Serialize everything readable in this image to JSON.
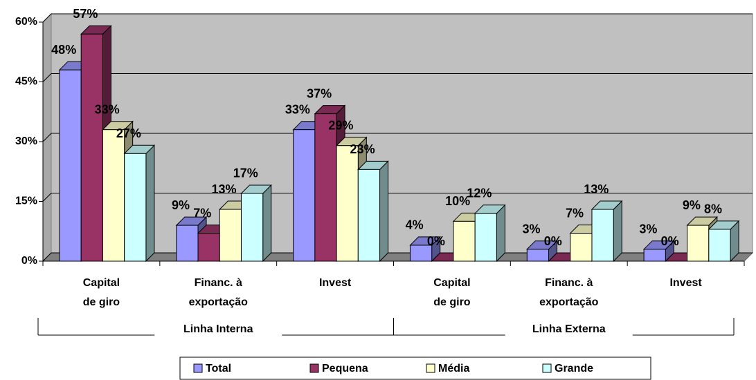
{
  "chart_data": {
    "type": "bar3d",
    "categories": [
      [
        "Capital",
        "de giro"
      ],
      [
        "Financ. à",
        "exportação"
      ],
      [
        "Invest"
      ],
      [
        "Capital",
        "de giro"
      ],
      [
        "Financ. à",
        "exportação"
      ],
      [
        "Invest"
      ]
    ],
    "groups": [
      "Linha Interna",
      "Linha Externa"
    ],
    "series": [
      {
        "name": "Total",
        "color": "#9999ff",
        "values": [
          48,
          9,
          33,
          4,
          3,
          3
        ],
        "value_labels": [
          "48%",
          "9%",
          "33%",
          "4%",
          "3%",
          "3%"
        ]
      },
      {
        "name": "Pequena",
        "color": "#993366",
        "values": [
          57,
          7,
          37,
          0,
          0,
          0
        ],
        "value_labels": [
          "57%",
          "7%",
          "37%",
          "0%",
          "0%",
          "0%"
        ]
      },
      {
        "name": "Média",
        "color": "#ffffcc",
        "values": [
          33,
          13,
          29,
          10,
          7,
          9
        ],
        "value_labels": [
          "33%",
          "13%",
          "29%",
          "10%",
          "7%",
          "9%"
        ]
      },
      {
        "name": "Grande",
        "color": "#ccffff",
        "values": [
          27,
          17,
          23,
          12,
          13,
          8
        ],
        "value_labels": [
          "27%",
          "17%",
          "23%",
          "12%",
          "13%",
          "8%"
        ]
      }
    ],
    "ylim": [
      0,
      60
    ],
    "yticks": [
      {
        "value": 0,
        "label": "0%"
      },
      {
        "value": 15,
        "label": "15%"
      },
      {
        "value": 30,
        "label": "30%"
      },
      {
        "value": 45,
        "label": "45%"
      },
      {
        "value": 60,
        "label": "60%"
      }
    ],
    "grid": true,
    "legend": "bottom"
  }
}
